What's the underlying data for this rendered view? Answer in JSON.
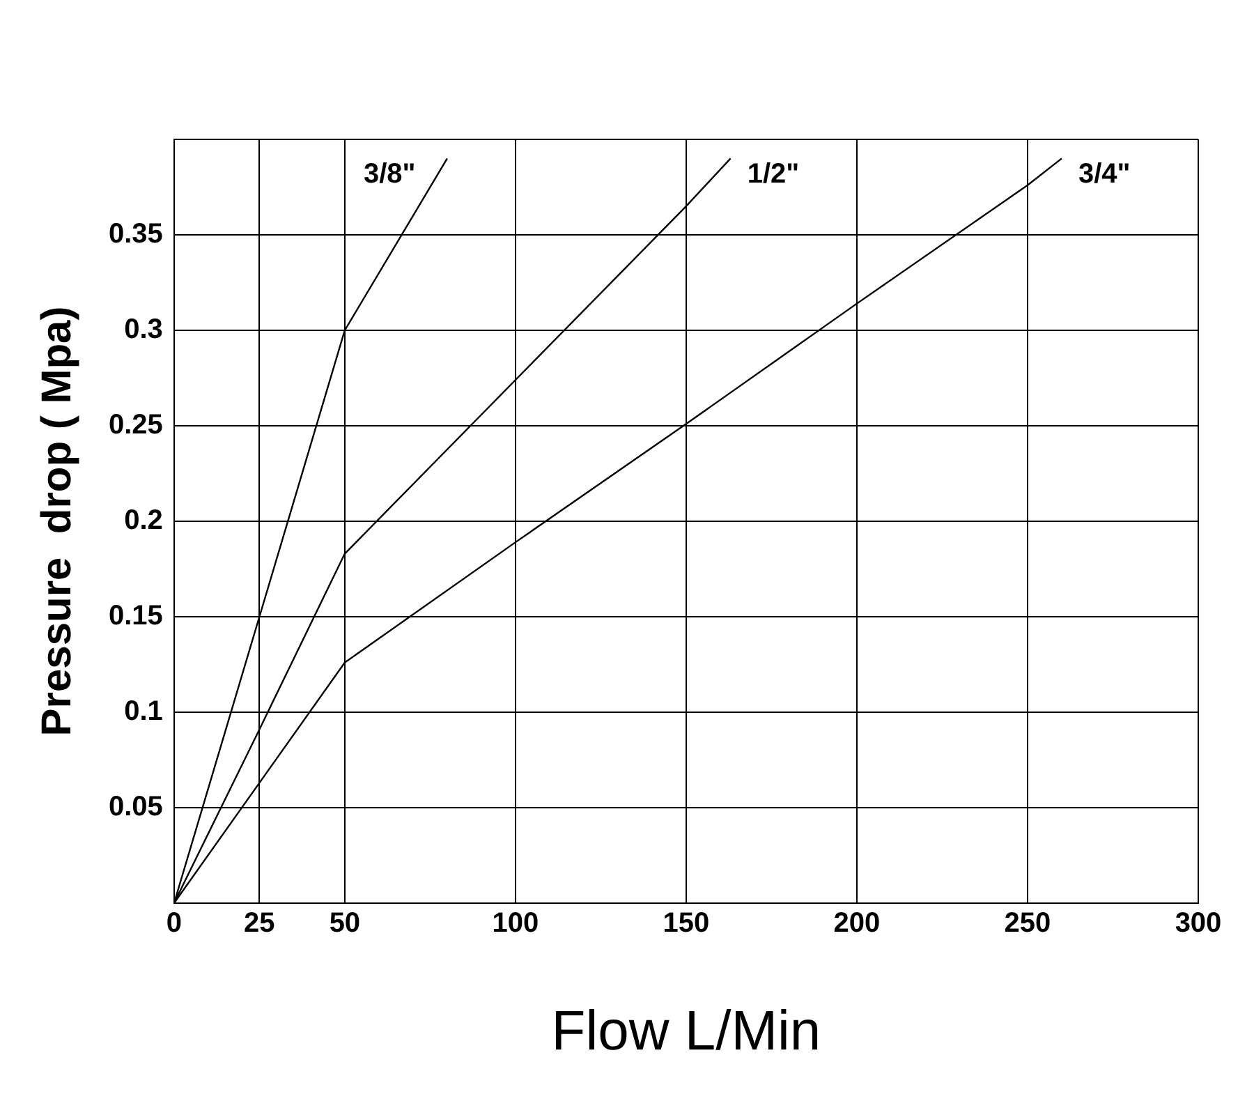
{
  "chart_data": {
    "type": "line",
    "xlabel": "Flow L/Min",
    "ylabel": "Pressure  drop ( Mpa)",
    "xlim": [
      0,
      300
    ],
    "xticks": [
      0,
      25,
      50,
      100,
      150,
      200,
      250,
      300
    ],
    "ylim": [
      0,
      0.4
    ],
    "yticks": [
      {
        "value": 0,
        "label": null
      },
      0.05,
      0.1,
      0.15,
      0.2,
      0.25,
      0.3,
      0.35,
      {
        "value": 0.4,
        "label": null
      }
    ],
    "grid": true,
    "legend": false,
    "marker": "none",
    "line_style": "solid",
    "series": [
      {
        "name": "3/8\"",
        "color": "#000000",
        "x": [
          0,
          25,
          50,
          80
        ],
        "values": [
          0,
          0.15,
          0.3,
          0.39
        ]
      },
      {
        "name": "1/2\"",
        "color": "#000000",
        "x": [
          0,
          25,
          50,
          100,
          150,
          163
        ],
        "values": [
          0,
          0.091,
          0.183,
          0.274,
          0.365,
          0.39
        ]
      },
      {
        "name": "3/4\"",
        "color": "#000000",
        "x": [
          0,
          25,
          50,
          100,
          150,
          200,
          250,
          260
        ],
        "values": [
          0,
          0.063,
          0.126,
          0.189,
          0.251,
          0.314,
          0.376,
          0.39
        ]
      }
    ]
  }
}
